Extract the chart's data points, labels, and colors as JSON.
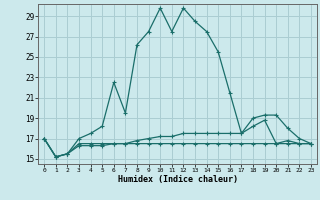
{
  "xlabel": "Humidex (Indice chaleur)",
  "bg_color": "#cce9ec",
  "grid_color": "#aacdd2",
  "line_color": "#1a6e6a",
  "xlim": [
    -0.5,
    23.5
  ],
  "ylim": [
    14.5,
    30.2
  ],
  "yticks": [
    15,
    17,
    19,
    21,
    23,
    25,
    27,
    29
  ],
  "xticks": [
    0,
    1,
    2,
    3,
    4,
    5,
    6,
    7,
    8,
    9,
    10,
    11,
    12,
    13,
    14,
    15,
    16,
    17,
    18,
    19,
    20,
    21,
    22,
    23
  ],
  "line1_x": [
    0,
    1,
    2,
    3,
    4,
    5,
    6,
    7,
    8,
    9,
    10,
    11,
    12,
    13,
    14,
    15,
    16,
    17,
    18,
    19,
    20,
    21,
    22,
    23
  ],
  "line1_y": [
    17.0,
    15.2,
    15.5,
    17.0,
    17.5,
    18.2,
    22.5,
    19.5,
    26.2,
    27.5,
    29.8,
    27.5,
    29.8,
    28.5,
    27.5,
    25.5,
    21.5,
    17.5,
    19.0,
    19.3,
    19.3,
    18.0,
    17.0,
    16.5
  ],
  "line2_x": [
    0,
    1,
    2,
    3,
    4,
    5,
    6,
    7,
    8,
    9,
    10,
    11,
    12,
    13,
    14,
    15,
    16,
    17,
    18,
    19,
    20,
    21,
    22,
    23
  ],
  "line2_y": [
    17.0,
    15.2,
    15.5,
    16.5,
    16.5,
    16.5,
    16.5,
    16.5,
    16.8,
    17.0,
    17.2,
    17.2,
    17.5,
    17.5,
    17.5,
    17.5,
    17.5,
    17.5,
    18.2,
    18.8,
    16.5,
    16.8,
    16.5,
    16.5
  ],
  "line3_x": [
    0,
    1,
    2,
    3,
    4,
    5,
    6,
    7,
    8,
    9,
    10,
    11,
    12,
    13,
    14,
    15,
    16,
    17,
    18,
    19,
    20,
    21,
    22,
    23
  ],
  "line3_y": [
    17.0,
    15.2,
    15.5,
    16.3,
    16.3,
    16.3,
    16.5,
    16.5,
    16.5,
    16.5,
    16.5,
    16.5,
    16.5,
    16.5,
    16.5,
    16.5,
    16.5,
    16.5,
    16.5,
    16.5,
    16.5,
    16.5,
    16.5,
    16.5
  ]
}
